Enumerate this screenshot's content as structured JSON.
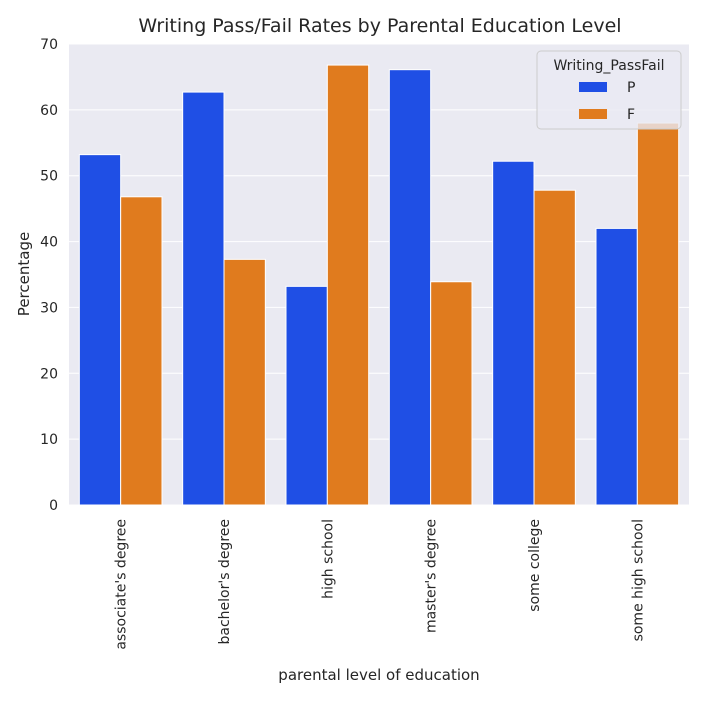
{
  "chart_data": {
    "type": "bar",
    "title": "Writing Pass/Fail Rates by Parental Education Level",
    "xlabel": "parental level of education",
    "ylabel": "Percentage",
    "ylim": [
      0,
      70
    ],
    "yticks": [
      0,
      10,
      20,
      30,
      40,
      50,
      60,
      70
    ],
    "grid": true,
    "legend": {
      "title": "Writing_PassFail",
      "placement": "top-right"
    },
    "categories": [
      "associate's degree",
      "bachelor's degree",
      "high school",
      "master's degree",
      "some college",
      "some high school"
    ],
    "series": [
      {
        "name": "P",
        "color": "#1f4fe5",
        "values": [
          53.2,
          62.7,
          33.2,
          66.1,
          52.2,
          42.0
        ]
      },
      {
        "name": "F",
        "color": "#e07b1e",
        "values": [
          46.8,
          37.3,
          66.8,
          33.9,
          47.8,
          58.0
        ]
      }
    ],
    "background_color": "#eaeaf2",
    "grid_color": "#ffffff"
  }
}
